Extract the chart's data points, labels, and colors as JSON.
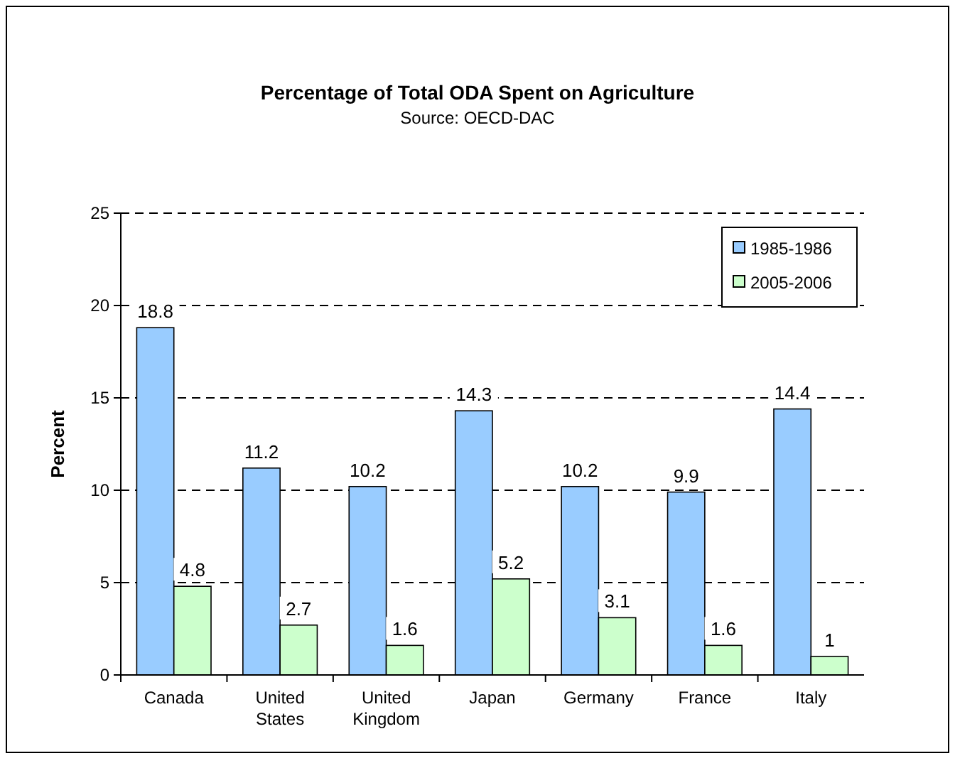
{
  "chart_data": {
    "type": "bar",
    "title": "Percentage of Total ODA Spent on Agriculture",
    "annotations": [
      "Source: OECD-DAC"
    ],
    "ylabel": "Percent",
    "categories": [
      "Canada",
      "United States",
      "United Kingdom",
      "Japan",
      "Germany",
      "France",
      "Italy"
    ],
    "series": [
      {
        "name": "1985-1986",
        "color": "#99ccff",
        "values": [
          18.8,
          11.2,
          10.2,
          14.3,
          10.2,
          9.9,
          14.4
        ]
      },
      {
        "name": "2005-2006",
        "color": "#ccffcc",
        "values": [
          4.8,
          2.7,
          1.6,
          5.2,
          3.1,
          1.6,
          1
        ]
      }
    ],
    "ylim": [
      0,
      25
    ],
    "yticks": [
      0,
      5,
      10,
      15,
      20,
      25
    ],
    "grid": "y",
    "legend": "top right",
    "data_labels": true
  }
}
